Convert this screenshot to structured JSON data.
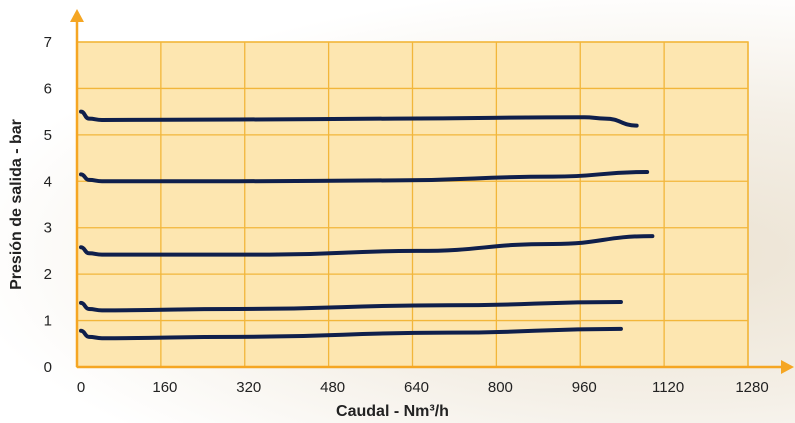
{
  "chart_data": {
    "type": "line",
    "xlabel": "Caudal - Nm³/h",
    "ylabel": "Presión de salida - bar",
    "xlim": [
      0,
      1280
    ],
    "ylim": [
      0,
      7
    ],
    "x_ticks": [
      0,
      160,
      320,
      480,
      640,
      800,
      960,
      1120,
      1280
    ],
    "y_ticks": [
      0,
      1,
      2,
      3,
      4,
      5,
      6,
      7
    ],
    "grid": true,
    "colors": {
      "plot_bg": "#fde6b0",
      "grid": "#f2b63a",
      "axis": "#f5a623",
      "line": "#0f1f4b"
    },
    "series": [
      {
        "points": [
          [
            0,
            5.5
          ],
          [
            15,
            5.35
          ],
          [
            40,
            5.32
          ],
          [
            300,
            5.33
          ],
          [
            600,
            5.35
          ],
          [
            960,
            5.38
          ],
          [
            1000,
            5.35
          ],
          [
            1060,
            5.2
          ]
        ]
      },
      {
        "points": [
          [
            0,
            4.15
          ],
          [
            15,
            4.03
          ],
          [
            40,
            4.0
          ],
          [
            300,
            4.0
          ],
          [
            600,
            4.02
          ],
          [
            900,
            4.1
          ],
          [
            1080,
            4.2
          ]
        ]
      },
      {
        "points": [
          [
            0,
            2.58
          ],
          [
            15,
            2.45
          ],
          [
            40,
            2.42
          ],
          [
            360,
            2.42
          ],
          [
            640,
            2.5
          ],
          [
            900,
            2.65
          ],
          [
            1090,
            2.82
          ]
        ]
      },
      {
        "points": [
          [
            0,
            1.38
          ],
          [
            15,
            1.25
          ],
          [
            40,
            1.22
          ],
          [
            300,
            1.25
          ],
          [
            700,
            1.33
          ],
          [
            1030,
            1.4
          ]
        ]
      },
      {
        "points": [
          [
            0,
            0.78
          ],
          [
            15,
            0.65
          ],
          [
            40,
            0.62
          ],
          [
            300,
            0.65
          ],
          [
            700,
            0.74
          ],
          [
            1030,
            0.82
          ]
        ]
      }
    ]
  }
}
